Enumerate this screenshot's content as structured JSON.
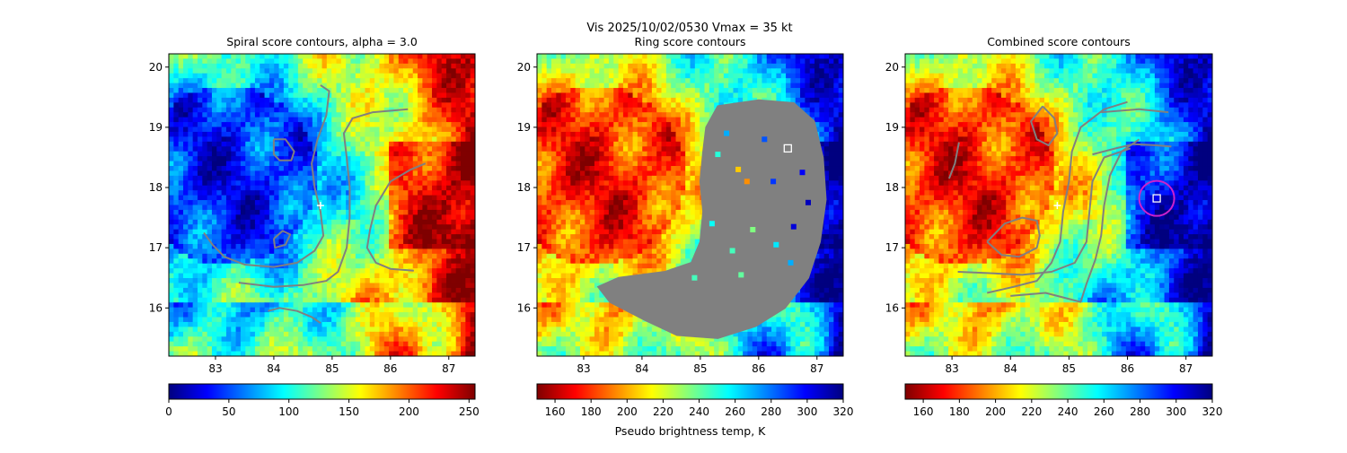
{
  "figure": {
    "suptitle_line1": "Vis  2025/10/02/0530    Vmax = 35 kt"
  },
  "colormap_stops": [
    "#7f0000",
    "#ff0000",
    "#ff8000",
    "#ffff00",
    "#80ff80",
    "#00ffff",
    "#0080ff",
    "#0000ff",
    "#00007f"
  ],
  "contour_color": "#808080",
  "center_marker_color": "#ffffff",
  "ring_circle_color": "#cc22cc",
  "chart_data": [
    {
      "type": "heatmap",
      "title": "Spiral score contours, alpha =  3.0",
      "xlim": [
        82.2,
        87.45
      ],
      "ylim": [
        15.2,
        20.22
      ],
      "xticks": [
        83,
        84,
        85,
        86,
        87
      ],
      "yticks": [
        16,
        17,
        18,
        19,
        20
      ],
      "xticklabels": [
        "83",
        "84",
        "85",
        "86",
        "87"
      ],
      "yticklabels": [
        "16",
        "17",
        "18",
        "19",
        "20"
      ],
      "colorbar": {
        "min": 0,
        "max": 255,
        "reversed": true,
        "ticks": [
          0,
          50,
          100,
          150,
          200,
          250
        ],
        "ticklabels": [
          "0",
          "50",
          "100",
          "150",
          "200",
          "250"
        ],
        "label": ""
      },
      "center_marker": [
        84.8,
        17.7
      ],
      "contours": [
        [
          [
            84.8,
            19.7
          ],
          [
            84.95,
            19.6
          ],
          [
            84.9,
            19.2
          ],
          [
            84.75,
            18.8
          ],
          [
            84.65,
            18.4
          ],
          [
            84.7,
            18.0
          ],
          [
            84.8,
            17.6
          ],
          [
            84.85,
            17.2
          ],
          [
            84.7,
            16.95
          ],
          [
            84.4,
            16.75
          ],
          [
            84.0,
            16.68
          ],
          [
            83.5,
            16.72
          ],
          [
            83.15,
            16.85
          ],
          [
            82.95,
            17.05
          ],
          [
            82.8,
            17.25
          ]
        ],
        [
          [
            84.0,
            18.8
          ],
          [
            84.2,
            18.8
          ],
          [
            84.35,
            18.6
          ],
          [
            84.3,
            18.45
          ],
          [
            84.1,
            18.45
          ],
          [
            84.0,
            18.55
          ],
          [
            84.0,
            18.8
          ]
        ],
        [
          [
            84.0,
            17.15
          ],
          [
            84.15,
            17.28
          ],
          [
            84.28,
            17.22
          ],
          [
            84.2,
            17.05
          ],
          [
            84.02,
            17.0
          ],
          [
            84.0,
            17.15
          ]
        ],
        [
          [
            86.3,
            19.3
          ],
          [
            85.7,
            19.25
          ],
          [
            85.35,
            19.15
          ],
          [
            85.2,
            18.9
          ],
          [
            85.25,
            18.5
          ],
          [
            85.3,
            18.0
          ],
          [
            85.3,
            17.5
          ],
          [
            85.25,
            17.0
          ],
          [
            85.1,
            16.6
          ],
          [
            84.9,
            16.45
          ],
          [
            84.5,
            16.38
          ],
          [
            84.0,
            16.35
          ],
          [
            83.4,
            16.42
          ]
        ],
        [
          [
            86.6,
            18.4
          ],
          [
            86.35,
            18.3
          ],
          [
            86.0,
            18.1
          ],
          [
            85.75,
            17.7
          ],
          [
            85.65,
            17.3
          ],
          [
            85.6,
            17.0
          ],
          [
            85.75,
            16.75
          ],
          [
            86.0,
            16.65
          ],
          [
            86.4,
            16.62
          ]
        ],
        [
          [
            83.9,
            15.95
          ],
          [
            84.1,
            16.0
          ],
          [
            84.4,
            15.95
          ],
          [
            84.65,
            15.85
          ],
          [
            84.8,
            15.75
          ]
        ]
      ]
    },
    {
      "type": "heatmap",
      "title": "Ring score contours",
      "xlim": [
        82.2,
        87.45
      ],
      "ylim": [
        15.2,
        20.22
      ],
      "xticks": [
        83,
        84,
        85,
        86,
        87
      ],
      "yticks": [
        16,
        17,
        18,
        19,
        20
      ],
      "xticklabels": [
        "83",
        "84",
        "85",
        "86",
        "87"
      ],
      "yticklabels": [
        "16",
        "17",
        "18",
        "19",
        "20"
      ],
      "colorbar": {
        "min": 150,
        "max": 320,
        "reversed": false,
        "ticks": [
          160,
          180,
          200,
          220,
          240,
          260,
          280,
          300,
          320
        ],
        "ticklabels": [
          "160",
          "180",
          "200",
          "220",
          "240",
          "260",
          "280",
          "300",
          "320"
        ],
        "label": "Pseudo brightness temp, K"
      },
      "square_marker": [
        86.5,
        18.65
      ],
      "ring_region": [
        [
          85.3,
          19.35
        ],
        [
          86.0,
          19.45
        ],
        [
          86.6,
          19.4
        ],
        [
          86.95,
          19.1
        ],
        [
          87.1,
          18.5
        ],
        [
          87.15,
          17.8
        ],
        [
          87.05,
          17.1
        ],
        [
          86.85,
          16.5
        ],
        [
          86.45,
          16.0
        ],
        [
          85.95,
          15.7
        ],
        [
          85.3,
          15.5
        ],
        [
          84.6,
          15.55
        ],
        [
          84.05,
          15.8
        ],
        [
          83.45,
          16.1
        ],
        [
          83.25,
          16.35
        ],
        [
          83.6,
          16.5
        ],
        [
          84.4,
          16.6
        ],
        [
          84.85,
          16.75
        ],
        [
          85.0,
          17.1
        ],
        [
          85.05,
          17.6
        ],
        [
          85.0,
          18.1
        ],
        [
          85.05,
          18.6
        ],
        [
          85.1,
          19.0
        ],
        [
          85.3,
          19.35
        ]
      ],
      "ring_colored_specks": [
        {
          "x": 85.8,
          "y": 18.1,
          "value": 195
        },
        {
          "x": 85.65,
          "y": 18.3,
          "value": 205
        },
        {
          "x": 85.3,
          "y": 18.55,
          "value": 250
        },
        {
          "x": 85.45,
          "y": 18.9,
          "value": 270
        },
        {
          "x": 86.1,
          "y": 18.8,
          "value": 285
        },
        {
          "x": 86.75,
          "y": 18.25,
          "value": 300
        },
        {
          "x": 86.85,
          "y": 17.75,
          "value": 310
        },
        {
          "x": 86.6,
          "y": 17.35,
          "value": 305
        },
        {
          "x": 86.3,
          "y": 17.05,
          "value": 260
        },
        {
          "x": 85.9,
          "y": 17.3,
          "value": 235
        },
        {
          "x": 85.55,
          "y": 16.95,
          "value": 245
        },
        {
          "x": 85.2,
          "y": 17.4,
          "value": 255
        },
        {
          "x": 86.55,
          "y": 16.75,
          "value": 270
        },
        {
          "x": 85.7,
          "y": 16.55,
          "value": 240
        },
        {
          "x": 84.9,
          "y": 16.5,
          "value": 245
        },
        {
          "x": 86.25,
          "y": 18.1,
          "value": 290
        }
      ]
    },
    {
      "type": "heatmap",
      "title": "Combined score contours",
      "xlim": [
        82.2,
        87.45
      ],
      "ylim": [
        15.2,
        20.22
      ],
      "xticks": [
        83,
        84,
        85,
        86,
        87
      ],
      "yticks": [
        16,
        17,
        18,
        19,
        20
      ],
      "xticklabels": [
        "83",
        "84",
        "85",
        "86",
        "87"
      ],
      "yticklabels": [
        "16",
        "17",
        "18",
        "19",
        "20"
      ],
      "colorbar": {
        "min": 150,
        "max": 320,
        "reversed": false,
        "ticks": [
          160,
          180,
          200,
          220,
          240,
          260,
          280,
          300,
          320
        ],
        "ticklabels": [
          "160",
          "180",
          "200",
          "220",
          "240",
          "260",
          "280",
          "300",
          "320"
        ],
        "label": ""
      },
      "center_marker": [
        84.8,
        17.7
      ],
      "square_marker": [
        86.5,
        17.82
      ],
      "ring_circle": {
        "x": 86.5,
        "y": 17.82,
        "radius_deg": 0.3
      },
      "contours": [
        [
          [
            84.55,
            19.35
          ],
          [
            84.75,
            19.15
          ],
          [
            84.8,
            18.9
          ],
          [
            84.65,
            18.7
          ],
          [
            84.45,
            18.8
          ],
          [
            84.35,
            19.1
          ],
          [
            84.55,
            19.35
          ]
        ],
        [
          [
            82.95,
            18.15
          ],
          [
            83.05,
            18.4
          ],
          [
            83.12,
            18.75
          ]
        ],
        [
          [
            83.6,
            17.1
          ],
          [
            83.9,
            17.4
          ],
          [
            84.2,
            17.5
          ],
          [
            84.45,
            17.45
          ],
          [
            84.5,
            17.2
          ],
          [
            84.45,
            17.0
          ],
          [
            84.15,
            16.85
          ],
          [
            83.85,
            16.88
          ],
          [
            83.6,
            17.1
          ]
        ],
        [
          [
            86.05,
            18.65
          ],
          [
            85.6,
            18.5
          ],
          [
            85.4,
            18.1
          ],
          [
            85.35,
            17.6
          ],
          [
            85.3,
            17.1
          ],
          [
            85.1,
            16.75
          ],
          [
            84.7,
            16.6
          ],
          [
            84.2,
            16.55
          ],
          [
            83.6,
            16.58
          ],
          [
            83.1,
            16.6
          ]
        ],
        [
          [
            86.0,
            19.42
          ],
          [
            85.6,
            19.3
          ],
          [
            85.2,
            19.0
          ],
          [
            85.05,
            18.6
          ],
          [
            85.0,
            18.1
          ],
          [
            84.9,
            17.6
          ],
          [
            84.85,
            17.1
          ],
          [
            84.7,
            16.75
          ],
          [
            84.45,
            16.45
          ],
          [
            84.05,
            16.35
          ],
          [
            83.6,
            16.25
          ]
        ],
        [
          [
            86.2,
            18.8
          ],
          [
            85.9,
            18.6
          ],
          [
            85.7,
            18.2
          ],
          [
            85.6,
            17.7
          ],
          [
            85.55,
            17.2
          ],
          [
            85.45,
            16.8
          ],
          [
            85.3,
            16.4
          ],
          [
            85.2,
            16.1
          ],
          [
            84.6,
            16.25
          ],
          [
            84.0,
            16.2
          ]
        ],
        [
          [
            85.55,
            19.25
          ],
          [
            86.2,
            19.3
          ],
          [
            86.7,
            19.25
          ]
        ],
        [
          [
            85.4,
            18.55
          ],
          [
            85.8,
            18.65
          ],
          [
            86.1,
            18.72
          ],
          [
            86.5,
            18.7
          ],
          [
            86.75,
            18.68
          ]
        ]
      ]
    }
  ],
  "panels_axis_text": {
    "panel_1_title": "Spiral score contours, alpha =  3.0",
    "panel_2_title": "Ring score contours",
    "panel_3_title": "Combined score contours",
    "colorbar_2_label": "Pseudo brightness temp, K"
  }
}
